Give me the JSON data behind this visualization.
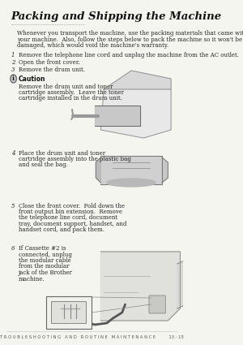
{
  "bg_color": "#f5f5f0",
  "title": "Packing and Shipping the Machine",
  "dot_line": ".................................................",
  "intro": "Whenever you transport the machine, use the packing materials that came with\nyour machine.  Also, follow the steps below to pack the machine so it won't be\ndamaged, which would void the machine's warranty.",
  "steps": [
    {
      "num": "1",
      "text": "Remove the telephone line cord and unplug the machine from the AC outlet."
    },
    {
      "num": "2",
      "text": "Open the front cover."
    },
    {
      "num": "3",
      "text": "Remove the drum unit."
    }
  ],
  "caution_title": "Caution",
  "caution_text": "Remove the drum unit and toner\ncartridge assembly.  Leave the toner\ncartridge installed in the drum unit.",
  "step4": {
    "num": "4",
    "text": "Place the drum unit and toner\ncartridge assembly into the plastic bag\nand seal the bag."
  },
  "step5": {
    "num": "5",
    "text": "Close the front cover.  Fold down the\nfront output bin extension.  Remove\nthe telephone line cord, document\ntray, document support, handset, and\nhandset cord, and pack them."
  },
  "step6": {
    "num": "6",
    "text": "If Cassette #2 is\nconnected, unplug\nthe modular cable\nfrom the modular\njack of the Brother\nmachine."
  },
  "footer": "T R O U B L E S H O O T I N G   A N D   R O U T I N E   M A I N T E N A N C E          13 - 15",
  "title_fontsize": 9.5,
  "body_fontsize": 5.0,
  "step_fontsize": 5.0,
  "footer_fontsize": 3.8
}
